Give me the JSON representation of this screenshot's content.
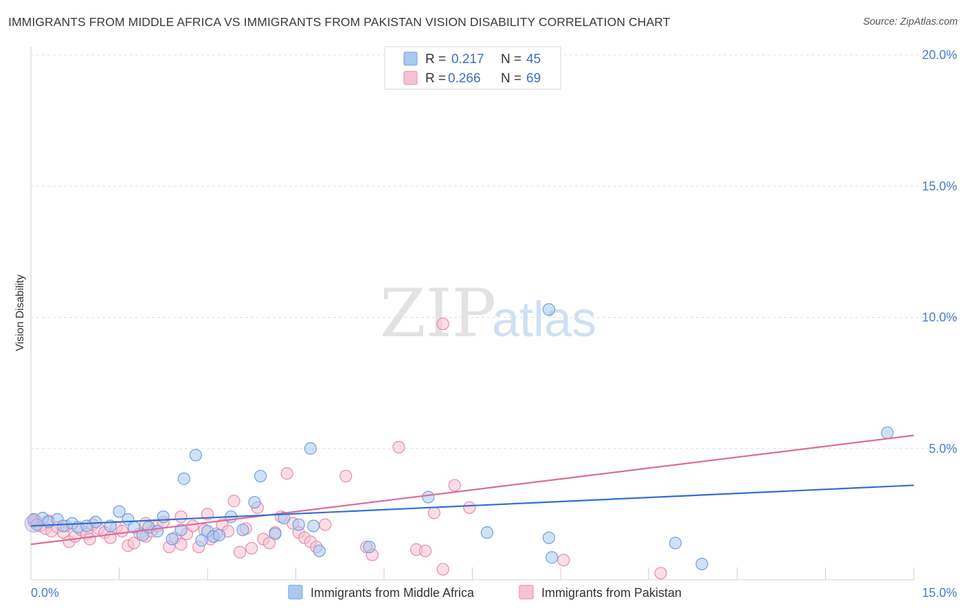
{
  "header": {
    "title": "IMMIGRANTS FROM MIDDLE AFRICA VS IMMIGRANTS FROM PAKISTAN VISION DISABILITY CORRELATION CHART",
    "source": "Source: ZipAtlas.com"
  },
  "watermark": {
    "zip": "ZIP",
    "atlas": "atlas"
  },
  "legend": {
    "rows": [
      {
        "r_label": "R =",
        "r_value": "0.217",
        "n_label": "N =",
        "n_value": "45"
      },
      {
        "r_label": "R =",
        "r_value": "0.266",
        "n_label": "N =",
        "n_value": "69"
      }
    ]
  },
  "bottom_legend": {
    "series1": "Immigrants from Middle Africa",
    "series2": "Immigrants from Pakistan"
  },
  "colors": {
    "series1_fill": "#a9c9f0",
    "series1_stroke": "#6f9fdc",
    "series1_line": "#2f6fd0",
    "series2_fill": "#f6c3d3",
    "series2_stroke": "#e98aaa",
    "series2_line": "#e06a95",
    "tick_text": "#4a7cc9",
    "grid": "#dddddd"
  },
  "chart_data": {
    "type": "scatter",
    "title": "IMMIGRANTS FROM MIDDLE AFRICA VS IMMIGRANTS FROM PAKISTAN VISION DISABILITY CORRELATION CHART",
    "xlabel": "",
    "ylabel": "Vision Disability",
    "xlim": [
      0,
      15
    ],
    "ylim": [
      0,
      20
    ],
    "x_tick_labels": [
      {
        "value": 0,
        "label": "0.0%"
      },
      {
        "value": 15,
        "label": "15.0%"
      }
    ],
    "y_tick_labels": [
      {
        "value": 5,
        "label": "5.0%"
      },
      {
        "value": 10,
        "label": "10.0%"
      },
      {
        "value": 15,
        "label": "15.0%"
      },
      {
        "value": 20,
        "label": "20.0%"
      }
    ],
    "series": [
      {
        "name": "Immigrants from Middle Africa",
        "R": 0.217,
        "N": 45,
        "trend": {
          "x": [
            0,
            15
          ],
          "y": [
            2.05,
            3.6
          ]
        },
        "points": [
          [
            0.05,
            2.3
          ],
          [
            0.2,
            2.35
          ],
          [
            0.3,
            2.2
          ],
          [
            0.45,
            2.3
          ],
          [
            0.55,
            2.05
          ],
          [
            0.7,
            2.15
          ],
          [
            0.8,
            2.0
          ],
          [
            0.95,
            2.05
          ],
          [
            1.1,
            2.2
          ],
          [
            1.35,
            2.05
          ],
          [
            1.5,
            2.6
          ],
          [
            1.65,
            2.3
          ],
          [
            1.75,
            2.0
          ],
          [
            1.9,
            1.7
          ],
          [
            2.0,
            2.0
          ],
          [
            2.15,
            1.85
          ],
          [
            2.25,
            2.4
          ],
          [
            2.4,
            1.55
          ],
          [
            2.55,
            1.9
          ],
          [
            2.6,
            3.85
          ],
          [
            2.8,
            4.75
          ],
          [
            2.9,
            1.5
          ],
          [
            3.0,
            1.85
          ],
          [
            3.1,
            1.65
          ],
          [
            3.2,
            1.7
          ],
          [
            3.4,
            2.4
          ],
          [
            3.6,
            1.9
          ],
          [
            3.8,
            2.95
          ],
          [
            3.9,
            3.95
          ],
          [
            4.15,
            1.75
          ],
          [
            4.3,
            2.35
          ],
          [
            4.55,
            2.1
          ],
          [
            4.75,
            5.0
          ],
          [
            4.8,
            2.05
          ],
          [
            4.9,
            1.1
          ],
          [
            5.75,
            1.25
          ],
          [
            6.75,
            3.15
          ],
          [
            7.75,
            1.8
          ],
          [
            8.8,
            10.3
          ],
          [
            8.8,
            1.6
          ],
          [
            8.85,
            0.85
          ],
          [
            10.95,
            1.4
          ],
          [
            11.4,
            0.6
          ],
          [
            14.55,
            5.6
          ],
          [
            0.1,
            2.1
          ]
        ]
      },
      {
        "name": "Immigrants from Pakistan",
        "R": 0.266,
        "N": 69,
        "trend": {
          "x": [
            0,
            15
          ],
          "y": [
            1.35,
            5.5
          ]
        },
        "points": [
          [
            0.05,
            2.2
          ],
          [
            0.15,
            2.05
          ],
          [
            0.25,
            1.95
          ],
          [
            0.35,
            1.85
          ],
          [
            0.45,
            2.0
          ],
          [
            0.55,
            1.8
          ],
          [
            0.65,
            1.45
          ],
          [
            0.75,
            1.65
          ],
          [
            0.85,
            1.9
          ],
          [
            0.95,
            1.75
          ],
          [
            1.05,
            2.1
          ],
          [
            1.15,
            1.95
          ],
          [
            1.25,
            1.8
          ],
          [
            1.35,
            1.6
          ],
          [
            1.45,
            2.0
          ],
          [
            1.55,
            1.85
          ],
          [
            1.65,
            1.3
          ],
          [
            1.75,
            1.4
          ],
          [
            1.85,
            1.75
          ],
          [
            1.95,
            1.65
          ],
          [
            2.05,
            1.85
          ],
          [
            2.15,
            2.05
          ],
          [
            2.25,
            2.2
          ],
          [
            2.35,
            1.25
          ],
          [
            2.45,
            1.6
          ],
          [
            2.55,
            1.35
          ],
          [
            2.65,
            1.75
          ],
          [
            2.75,
            2.05
          ],
          [
            2.85,
            1.25
          ],
          [
            2.95,
            1.9
          ],
          [
            3.05,
            1.55
          ],
          [
            3.15,
            1.75
          ],
          [
            3.25,
            2.1
          ],
          [
            3.35,
            1.85
          ],
          [
            3.45,
            3.0
          ],
          [
            3.55,
            1.05
          ],
          [
            3.65,
            1.95
          ],
          [
            3.75,
            1.2
          ],
          [
            3.85,
            2.75
          ],
          [
            3.95,
            1.55
          ],
          [
            4.05,
            1.4
          ],
          [
            4.15,
            1.8
          ],
          [
            4.25,
            2.4
          ],
          [
            4.35,
            4.05
          ],
          [
            4.45,
            2.15
          ],
          [
            4.55,
            1.8
          ],
          [
            4.65,
            1.6
          ],
          [
            4.75,
            1.45
          ],
          [
            4.85,
            1.25
          ],
          [
            5.0,
            2.1
          ],
          [
            5.35,
            3.95
          ],
          [
            5.7,
            1.25
          ],
          [
            5.8,
            0.95
          ],
          [
            6.25,
            5.05
          ],
          [
            6.55,
            1.15
          ],
          [
            6.7,
            1.1
          ],
          [
            6.85,
            2.55
          ],
          [
            7.0,
            0.4
          ],
          [
            7.2,
            3.6
          ],
          [
            7.45,
            2.75
          ],
          [
            9.05,
            0.75
          ],
          [
            10.7,
            0.25
          ],
          [
            7.0,
            9.75
          ],
          [
            2.55,
            2.4
          ],
          [
            1.95,
            2.15
          ],
          [
            0.3,
            2.25
          ],
          [
            0.6,
            2.05
          ],
          [
            1.0,
            1.55
          ],
          [
            3.0,
            2.5
          ]
        ]
      }
    ]
  }
}
